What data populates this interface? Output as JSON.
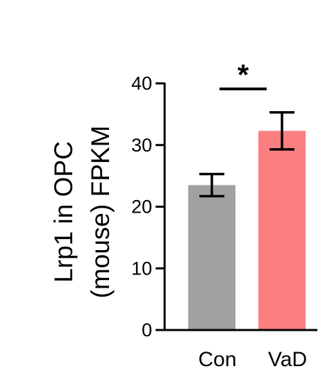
{
  "chart_data": {
    "type": "bar",
    "categories": [
      "Con",
      "VaD"
    ],
    "values": [
      23.5,
      32.3
    ],
    "errors": [
      1.8,
      3.0
    ],
    "colors": [
      "#a1a1a4",
      "#fb7f81"
    ],
    "ylabel_lines": [
      "Lrp1 in OPC",
      "(mouse) FPKM"
    ],
    "yticks": [
      0,
      10,
      20,
      30,
      40
    ],
    "ylim": [
      0,
      40
    ],
    "significance": {
      "between": [
        "Con",
        "VaD"
      ],
      "label": "*"
    }
  }
}
